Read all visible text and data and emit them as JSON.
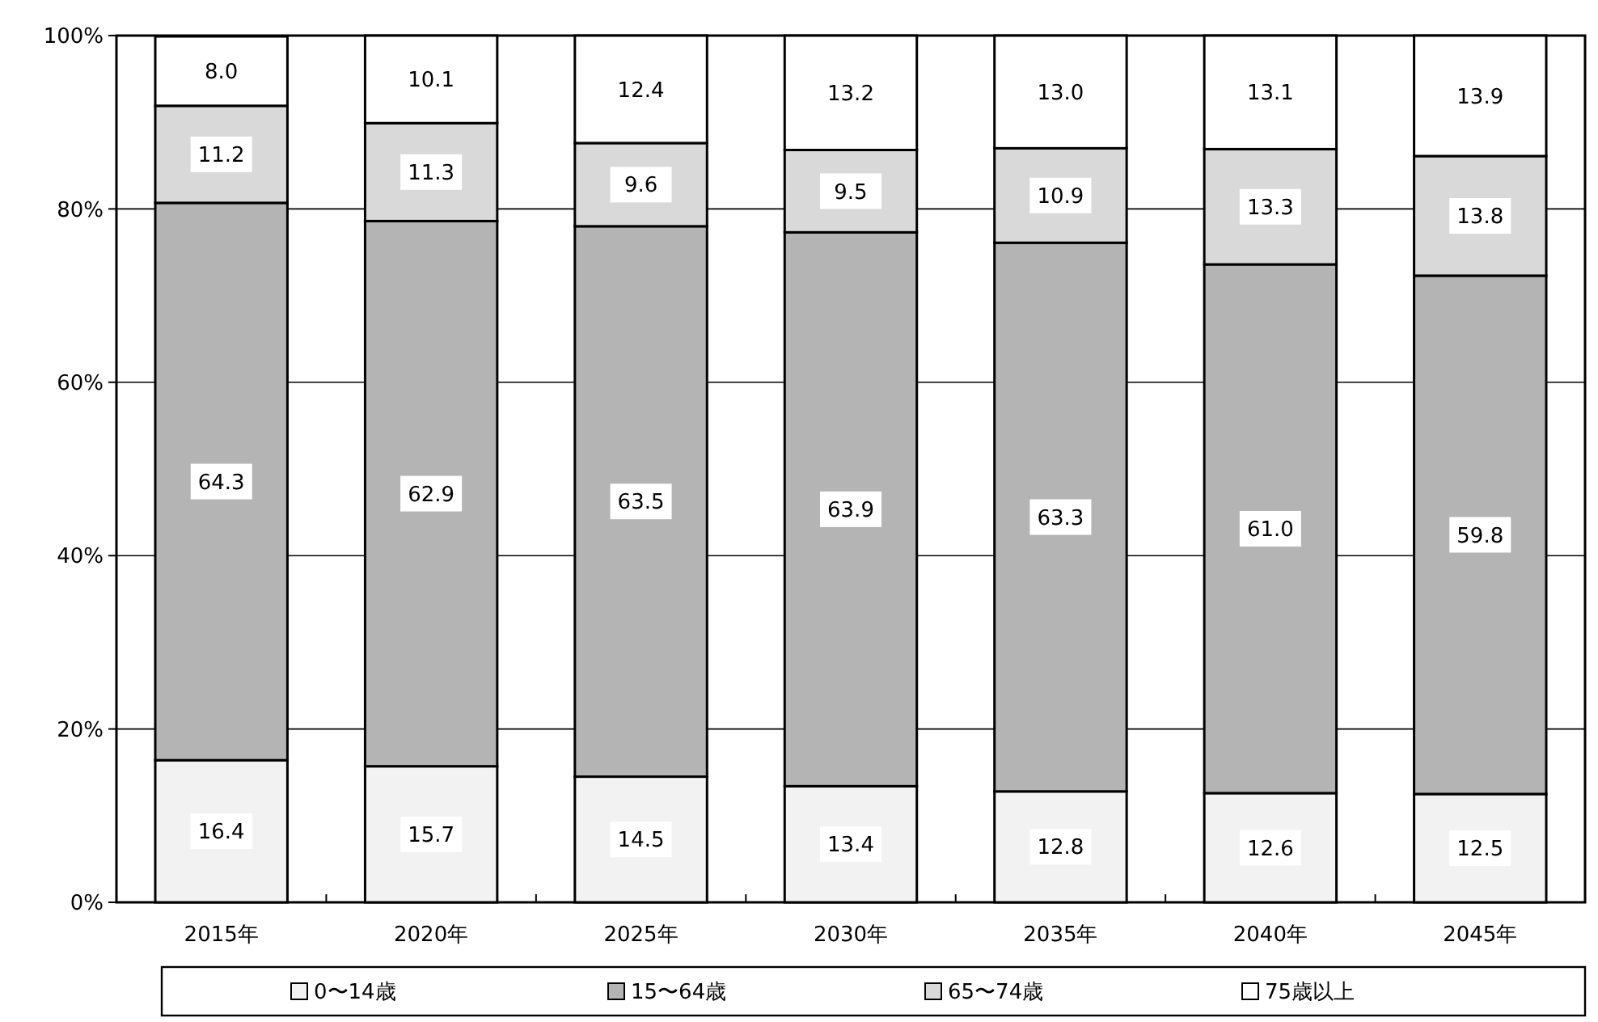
{
  "chart_data": {
    "type": "bar",
    "stacked": true,
    "categories": [
      "2015年",
      "2020年",
      "2025年",
      "2030年",
      "2035年",
      "2040年",
      "2045年"
    ],
    "series": [
      {
        "name": "0〜14歳",
        "color": "#f2f2f2",
        "values": [
          16.4,
          15.7,
          14.5,
          13.4,
          12.8,
          12.6,
          12.5
        ],
        "value_labels": [
          "16.4",
          "15.7",
          "14.5",
          "13.4",
          "12.8",
          "12.6",
          "12.5"
        ]
      },
      {
        "name": "15〜64歳",
        "color": "#b4b4b4",
        "values": [
          64.3,
          62.9,
          63.5,
          63.9,
          63.3,
          61.0,
          59.8
        ],
        "value_labels": [
          "64.3",
          "62.9",
          "63.5",
          "63.9",
          "63.3",
          "61.0",
          "59.8"
        ]
      },
      {
        "name": "65〜74歳",
        "color": "#d9d9d9",
        "values": [
          11.2,
          11.3,
          9.6,
          9.5,
          10.9,
          13.3,
          13.8
        ],
        "value_labels": [
          "11.2",
          "11.3",
          "9.6",
          "9.5",
          "10.9",
          "13.3",
          "13.8"
        ]
      },
      {
        "name": "75歳以上",
        "color": "#ffffff",
        "values": [
          8.0,
          10.1,
          12.4,
          13.2,
          13.0,
          13.1,
          13.9
        ],
        "value_labels": [
          "8.0",
          "10.1",
          "12.4",
          "13.2",
          "13.0",
          "13.1",
          "13.9"
        ]
      }
    ],
    "ylim": [
      0,
      100
    ],
    "yticks": [
      {
        "value": 0,
        "label": "0%"
      },
      {
        "value": 20,
        "label": "20%"
      },
      {
        "value": 40,
        "label": "40%"
      },
      {
        "value": 60,
        "label": "60%"
      },
      {
        "value": 80,
        "label": "80%"
      },
      {
        "value": 100,
        "label": "100%"
      }
    ],
    "grid": "y",
    "legend": "bottom"
  }
}
